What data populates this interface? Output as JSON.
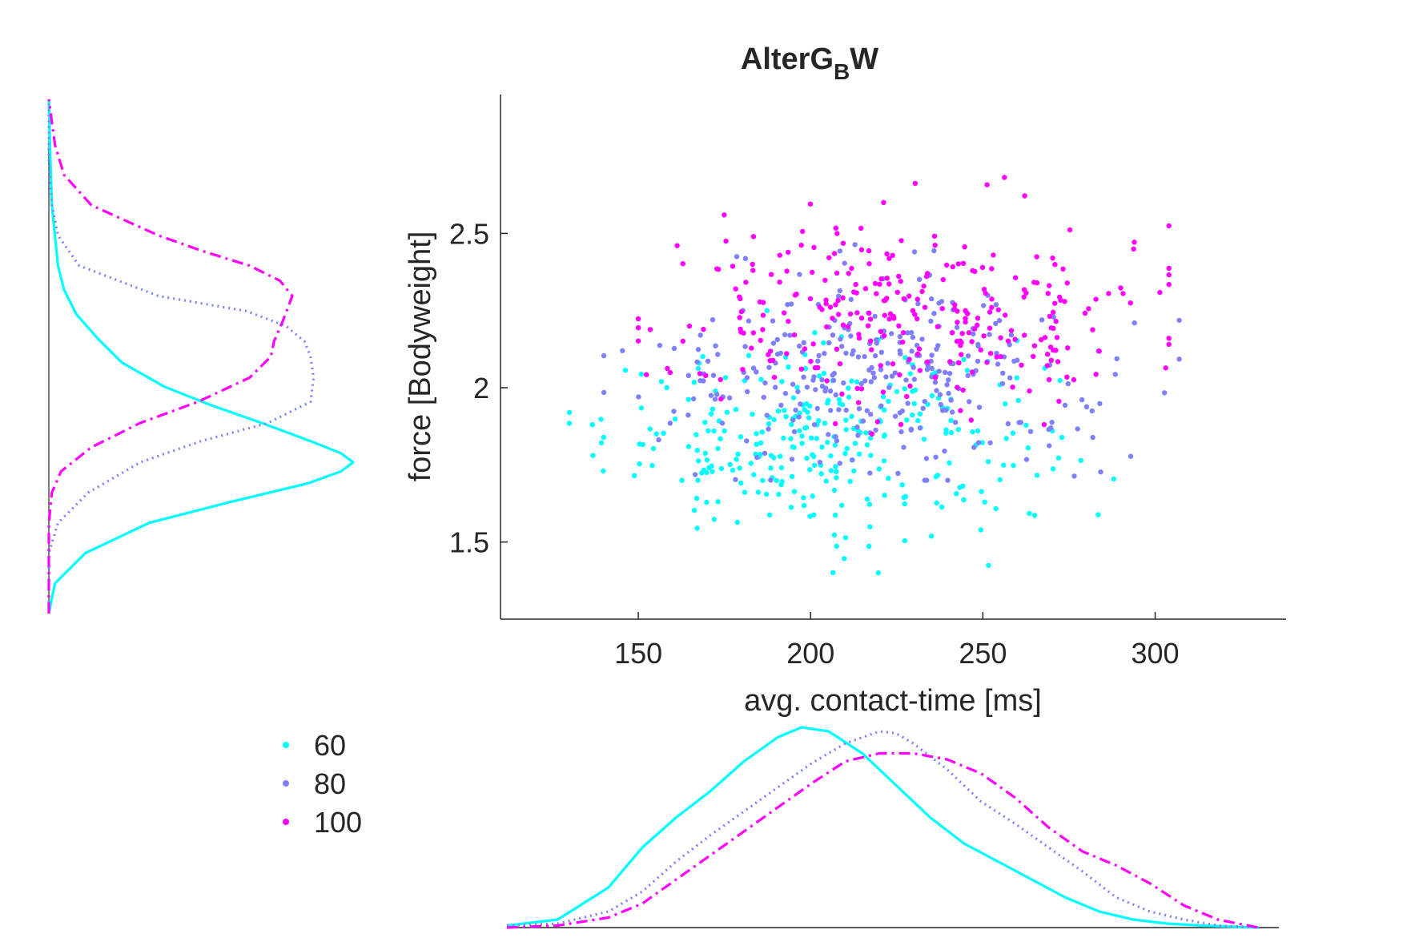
{
  "chart_data": {
    "type": "scatter",
    "title": {
      "main": "AlterG",
      "sub": "B",
      "suffix": "W"
    },
    "xlabel": "avg. contact-time [ms]",
    "ylabel": "force [Bodyweight]",
    "xlim": [
      110,
      338
    ],
    "ylim": [
      1.25,
      2.95
    ],
    "xticks": [
      150,
      200,
      250,
      300
    ],
    "yticks": [
      1.5,
      2,
      2.5
    ],
    "xtick_labels": [
      "150",
      "200",
      "250",
      "300"
    ],
    "ytick_labels": [
      "1.5",
      "2",
      "2.5"
    ],
    "grid": false,
    "legend": {
      "position": "lower-left",
      "entries": [
        "60",
        "80",
        "100"
      ]
    },
    "series": [
      {
        "name": "60",
        "color": "#00ffff",
        "line_style": "solid",
        "n_points": 300,
        "x_mean": 205,
        "x_sd": 32,
        "y_mean": 1.83,
        "y_sd": 0.15,
        "x_range": [
          130,
          316
        ],
        "y_range": [
          1.4,
          2.25
        ]
      },
      {
        "name": "80",
        "color": "#8080ff",
        "line_style": "dotted",
        "n_points": 300,
        "x_mean": 222,
        "x_sd": 33,
        "y_mean": 2.05,
        "y_sd": 0.16,
        "x_range": [
          140,
          307
        ],
        "y_range": [
          1.7,
          2.75
        ]
      },
      {
        "name": "100",
        "color": "#ff00ff",
        "line_style": "dash-dot",
        "n_points": 300,
        "x_mean": 226,
        "x_sd": 35,
        "y_mean": 2.24,
        "y_sd": 0.16,
        "x_range": [
          150,
          304
        ],
        "y_range": [
          1.85,
          2.79
        ]
      }
    ],
    "marginal_x": [
      {
        "series": "60",
        "x": [
          110,
          125,
          140,
          150,
          160,
          170,
          180,
          190,
          197,
          205,
          215,
          225,
          235,
          245,
          255,
          265,
          275,
          285,
          295,
          305,
          315,
          325,
          332
        ],
        "density": [
          0.01,
          0.04,
          0.2,
          0.4,
          0.55,
          0.68,
          0.83,
          0.95,
          1.0,
          0.98,
          0.87,
          0.71,
          0.55,
          0.42,
          0.33,
          0.24,
          0.15,
          0.08,
          0.04,
          0.02,
          0.01,
          0.004,
          0.0
        ]
      },
      {
        "series": "80",
        "x": [
          110,
          125,
          140,
          150,
          160,
          170,
          180,
          190,
          200,
          210,
          220,
          225,
          230,
          240,
          250,
          260,
          270,
          280,
          290,
          300,
          310,
          320,
          332
        ],
        "density": [
          0.01,
          0.02,
          0.08,
          0.18,
          0.33,
          0.46,
          0.58,
          0.7,
          0.82,
          0.92,
          0.98,
          0.97,
          0.92,
          0.79,
          0.63,
          0.52,
          0.4,
          0.28,
          0.15,
          0.08,
          0.04,
          0.01,
          0.0
        ]
      },
      {
        "series": "100",
        "x": [
          110,
          125,
          140,
          150,
          160,
          170,
          180,
          190,
          200,
          210,
          220,
          230,
          240,
          250,
          260,
          270,
          280,
          290,
          300,
          310,
          320,
          332
        ],
        "density": [
          0.0,
          0.01,
          0.05,
          0.12,
          0.24,
          0.36,
          0.48,
          0.6,
          0.72,
          0.83,
          0.87,
          0.87,
          0.84,
          0.77,
          0.65,
          0.5,
          0.38,
          0.31,
          0.22,
          0.11,
          0.04,
          0.0
        ]
      }
    ],
    "marginal_y": [
      {
        "series": "60",
        "y": [
          1.25,
          1.35,
          1.45,
          1.55,
          1.62,
          1.68,
          1.72,
          1.75,
          1.78,
          1.82,
          1.88,
          1.94,
          2.0,
          2.08,
          2.16,
          2.24,
          2.32,
          2.4,
          2.5,
          2.6,
          2.75,
          2.95
        ],
        "density": [
          0.0,
          0.02,
          0.12,
          0.33,
          0.6,
          0.85,
          0.96,
          1.0,
          0.96,
          0.86,
          0.7,
          0.53,
          0.38,
          0.24,
          0.16,
          0.09,
          0.05,
          0.03,
          0.02,
          0.01,
          0.005,
          0.0
        ]
      },
      {
        "series": "80",
        "y": [
          1.25,
          1.45,
          1.55,
          1.65,
          1.75,
          1.82,
          1.88,
          1.95,
          2.03,
          2.1,
          2.15,
          2.2,
          2.25,
          2.3,
          2.4,
          2.5,
          2.6,
          2.75,
          2.95
        ],
        "density": [
          0.0,
          0.0,
          0.03,
          0.13,
          0.3,
          0.5,
          0.72,
          0.86,
          0.87,
          0.86,
          0.84,
          0.78,
          0.65,
          0.36,
          0.1,
          0.03,
          0.01,
          0.0,
          0.0
        ]
      },
      {
        "series": "100",
        "y": [
          1.25,
          1.55,
          1.65,
          1.72,
          1.8,
          1.88,
          1.95,
          2.03,
          2.1,
          2.15,
          2.22,
          2.3,
          2.35,
          2.4,
          2.45,
          2.5,
          2.6,
          2.7,
          2.8,
          2.95
        ],
        "density": [
          0.0,
          0.0,
          0.01,
          0.04,
          0.14,
          0.3,
          0.49,
          0.66,
          0.73,
          0.74,
          0.77,
          0.8,
          0.76,
          0.66,
          0.5,
          0.36,
          0.14,
          0.05,
          0.02,
          0.0
        ]
      }
    ]
  }
}
